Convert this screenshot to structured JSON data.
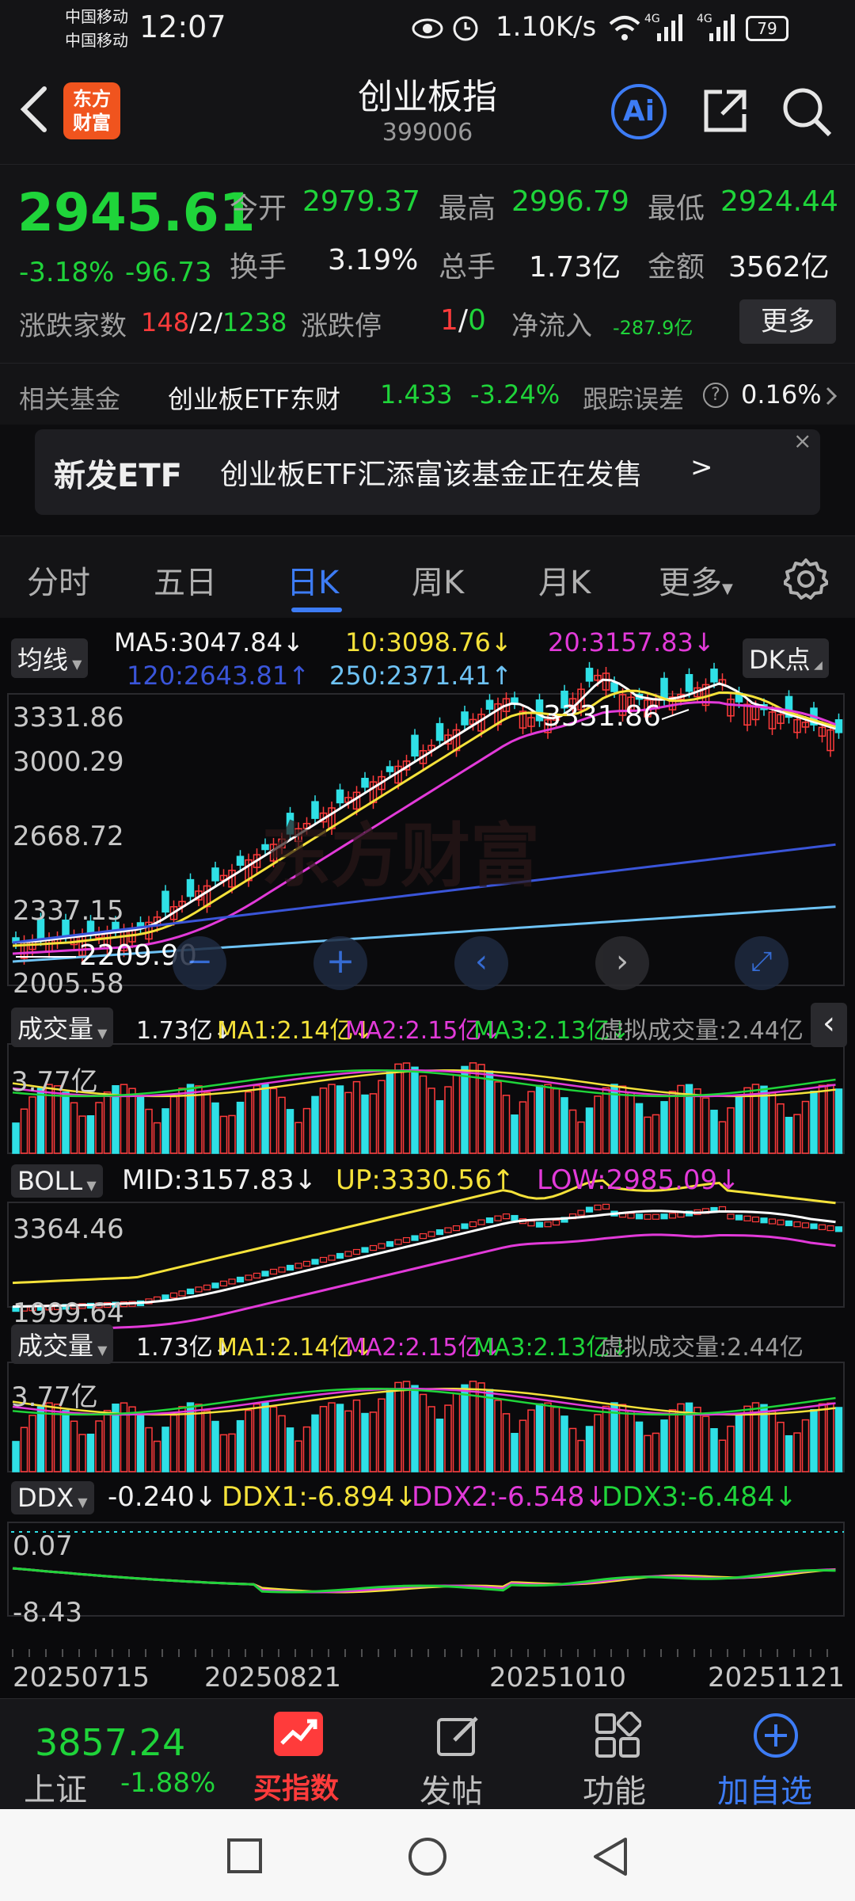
{
  "status_bar": {
    "carrier1": "中国移动",
    "carrier2": "中国移动",
    "time": "12:07",
    "net_speed": "1.10K/s",
    "battery": "79",
    "signal1": "4G",
    "signal2": "4G"
  },
  "header": {
    "logo_line1": "东方",
    "logo_line2": "财富",
    "title": "创业板指",
    "code": "399006",
    "ai_label": "Ai"
  },
  "quote": {
    "price": "2945.61",
    "change_pct": "-3.18%",
    "change": "-96.73",
    "open_label": "今开",
    "open": "2979.37",
    "high_label": "最高",
    "high": "2996.79",
    "low_label": "最低",
    "low": "2924.44",
    "turnover_label": "换手",
    "turnover": "3.19%",
    "volume_label": "总手",
    "volume": "1.73亿",
    "amount_label": "金额",
    "amount": "3562亿",
    "breadth_label": "涨跌家数",
    "breadth_up": "148",
    "breadth_sep1": "/",
    "breadth_flat": "2",
    "breadth_sep2": "/",
    "breadth_down": "1238",
    "limit_label": "涨跌停",
    "limit_up": "1",
    "limit_sep": "/",
    "limit_down": "0",
    "inflow_label": "净流入",
    "inflow": "-287.9亿",
    "more": "更多"
  },
  "fund": {
    "label": "相关基金",
    "name": "创业板ETF东财",
    "price": "1.433",
    "pct": "-3.24%",
    "err_label": "跟踪误差",
    "err_value": "0.16%"
  },
  "banner": {
    "tag": "新发ETF",
    "text": "创业板ETF汇添富该基金正在发售",
    "arrow": ">",
    "close": "×"
  },
  "tabs": [
    "分时",
    "五日",
    "日K",
    "周K",
    "月K",
    "更多"
  ],
  "active_tab": "日K",
  "chart": {
    "ma_pill": "均线",
    "ma5": "MA5:3047.84↓",
    "ma10": "10:3098.76↓",
    "ma20": "20:3157.83↓",
    "ma120": "120:2643.81↑",
    "ma250": "250:2371.41↑",
    "dk": "DK点",
    "y_top": "3331.86",
    "y_2": "3000.29",
    "y_3": "2668.72",
    "y_4": "2337.15",
    "y_bottom": "2005.58",
    "high_marker": "3331.86",
    "low_marker": "2209.90",
    "watermark": "东方财富",
    "vol_pill": "成交量",
    "vol_val": "1.73亿↓",
    "vol_ma1": "MA1:2.14亿↓",
    "vol_ma2": "MA2:2.15亿↓",
    "vol_ma3": "MA3:2.13亿↓",
    "vol_virtual": "虚拟成交量:2.44亿",
    "vol_axis": "3.77亿",
    "boll_pill": "BOLL",
    "boll_mid": "MID:3157.83↓",
    "boll_up": "UP:3330.56↑",
    "boll_low": "LOW:2985.09↓",
    "boll_axis_top": "3364.46",
    "boll_axis_bottom": "1999.64",
    "ddx_pill": "DDX",
    "ddx_val": "-0.240↓",
    "ddx1": "DDX1:-6.894↓",
    "ddx2": "DDX2:-6.548↓",
    "ddx3": "DDX3:-6.484↓",
    "ddx_axis_top": "0.07",
    "ddx_axis_bottom": "-8.43",
    "dates": [
      "20250715",
      "20250821",
      "20251010",
      "20251121"
    ]
  },
  "colors": {
    "up": "#ff3b3b",
    "down": "#1fd43a",
    "accent": "#3d7cf5",
    "ma5": "#ffffff",
    "ma10": "#f5e23a",
    "ma20": "#e23ad9",
    "ma120": "#3a55d9",
    "ma250": "#6ec3f5",
    "bear_candle": "#2fe0e6"
  },
  "bottom_nav": {
    "index_price": "3857.24",
    "index_name": "上证",
    "index_pct": "-1.88%",
    "buy_index": "买指数",
    "post": "发帖",
    "func": "功能",
    "add": "加自选"
  }
}
